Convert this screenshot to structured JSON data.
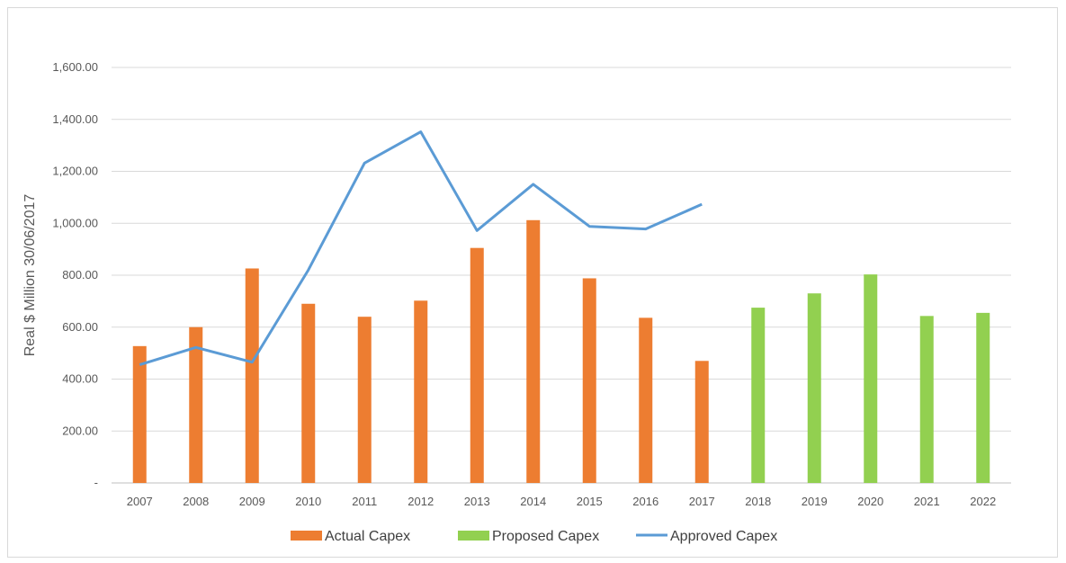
{
  "chart_data": {
    "type": "bar",
    "title": "",
    "xlabel": "",
    "ylabel": "Real $ Million 30/06/2017",
    "ylim": [
      0,
      1600
    ],
    "yticks": [
      0,
      200,
      400,
      600,
      800,
      1000,
      1200,
      1400,
      1600
    ],
    "ytick_labels": [
      "-",
      "200.00",
      "400.00",
      "600.00",
      "800.00",
      "1,000.00",
      "1,200.00",
      "1,400.00",
      "1,600.00"
    ],
    "grid": true,
    "legend_position": "bottom",
    "categories": [
      "2007",
      "2008",
      "2009",
      "2010",
      "2011",
      "2012",
      "2013",
      "2014",
      "2015",
      "2016",
      "2017",
      "2018",
      "2019",
      "2020",
      "2021",
      "2022"
    ],
    "series": [
      {
        "name": "Actual Capex",
        "type": "bar",
        "color": "#ED7D31",
        "values": [
          527,
          600,
          826,
          690,
          640,
          702,
          905,
          1012,
          788,
          636,
          470,
          null,
          null,
          null,
          null,
          null
        ]
      },
      {
        "name": "Proposed  Capex",
        "type": "bar",
        "color": "#92D050",
        "values": [
          null,
          null,
          null,
          null,
          null,
          null,
          null,
          null,
          null,
          null,
          null,
          675,
          730,
          803,
          643,
          655
        ]
      },
      {
        "name": "Approved Capex",
        "type": "line",
        "color": "#5B9BD5",
        "values": [
          455,
          522,
          465,
          820,
          1232,
          1352,
          972,
          1150,
          988,
          978,
          1073,
          null,
          null,
          null,
          null,
          null
        ]
      }
    ]
  }
}
